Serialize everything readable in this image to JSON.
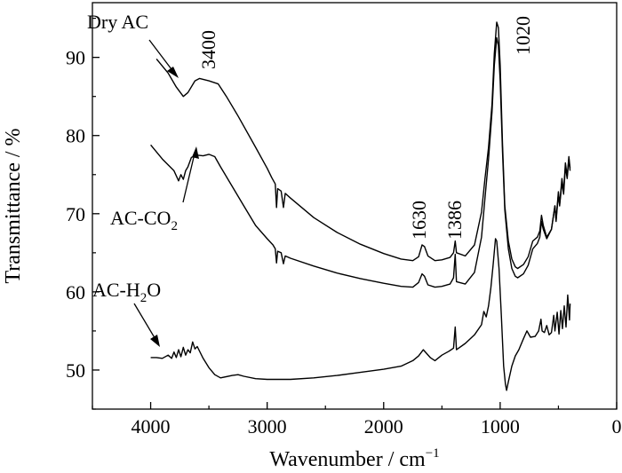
{
  "chart_data": {
    "type": "line",
    "title": "",
    "xlabel": "Wavenumber / cm",
    "xlabel_sup": "−1",
    "ylabel": "Transmittance / %",
    "xlim": [
      4500,
      0
    ],
    "ylim": [
      45,
      97
    ],
    "x_ticks": [
      4000,
      3000,
      2000,
      1000,
      0
    ],
    "y_ticks": [
      50,
      60,
      70,
      80,
      90
    ],
    "x_tick_labels": [
      "4000",
      "3000",
      "2000",
      "1000",
      "0"
    ],
    "y_tick_labels": [
      "50",
      "60",
      "70",
      "80",
      "90"
    ],
    "grid": false,
    "legend": "none",
    "series": [
      {
        "name": "Dry AC",
        "points": [
          [
            3950,
            89.8
          ],
          [
            3850,
            88.0
          ],
          [
            3780,
            86.2
          ],
          [
            3720,
            85.0
          ],
          [
            3680,
            85.5
          ],
          [
            3620,
            87.0
          ],
          [
            3580,
            87.3
          ],
          [
            3500,
            87.0
          ],
          [
            3420,
            86.6
          ],
          [
            3350,
            85.0
          ],
          [
            3250,
            82.5
          ],
          [
            3100,
            78.5
          ],
          [
            3000,
            75.8
          ],
          [
            2960,
            74.6
          ],
          [
            2930,
            73.8
          ],
          [
            2920,
            70.8
          ],
          [
            2910,
            73.2
          ],
          [
            2880,
            72.9
          ],
          [
            2860,
            70.8
          ],
          [
            2845,
            72.6
          ],
          [
            2800,
            72.0
          ],
          [
            2600,
            69.5
          ],
          [
            2400,
            67.6
          ],
          [
            2200,
            66.1
          ],
          [
            2000,
            64.9
          ],
          [
            1850,
            64.2
          ],
          [
            1750,
            64.0
          ],
          [
            1700,
            64.5
          ],
          [
            1670,
            66.0
          ],
          [
            1650,
            65.8
          ],
          [
            1620,
            64.6
          ],
          [
            1560,
            64.0
          ],
          [
            1500,
            64.1
          ],
          [
            1430,
            64.4
          ],
          [
            1400,
            65.0
          ],
          [
            1386,
            66.5
          ],
          [
            1375,
            65.0
          ],
          [
            1300,
            64.6
          ],
          [
            1220,
            66.0
          ],
          [
            1160,
            70.2
          ],
          [
            1130,
            74.5
          ],
          [
            1100,
            78.5
          ],
          [
            1070,
            84.0
          ],
          [
            1050,
            90.5
          ],
          [
            1030,
            94.5
          ],
          [
            1015,
            93.8
          ],
          [
            1000,
            89.0
          ],
          [
            980,
            79.0
          ],
          [
            960,
            71.0
          ],
          [
            930,
            66.5
          ],
          [
            900,
            64.2
          ],
          [
            870,
            63.2
          ],
          [
            850,
            63.0
          ],
          [
            800,
            63.5
          ],
          [
            760,
            64.5
          ],
          [
            720,
            66.5
          ],
          [
            680,
            67.0
          ],
          [
            660,
            67.8
          ],
          [
            645,
            69.8
          ],
          [
            630,
            68.5
          ],
          [
            600,
            67.0
          ],
          [
            560,
            68.0
          ],
          [
            530,
            71.0
          ],
          [
            520,
            69.0
          ],
          [
            500,
            72.5
          ],
          [
            490,
            71.0
          ],
          [
            470,
            74.0
          ],
          [
            455,
            72.5
          ],
          [
            440,
            76.0
          ],
          [
            425,
            74.5
          ],
          [
            410,
            77.0
          ],
          [
            400,
            75.5
          ]
        ]
      },
      {
        "name": "AC-CO",
        "name_sub": "2",
        "points": [
          [
            4000,
            78.8
          ],
          [
            3900,
            77.0
          ],
          [
            3800,
            75.5
          ],
          [
            3760,
            74.2
          ],
          [
            3740,
            75.0
          ],
          [
            3720,
            74.4
          ],
          [
            3700,
            75.5
          ],
          [
            3680,
            76.0
          ],
          [
            3650,
            77.2
          ],
          [
            3600,
            77.5
          ],
          [
            3550,
            77.4
          ],
          [
            3500,
            77.6
          ],
          [
            3450,
            77.3
          ],
          [
            3400,
            76.0
          ],
          [
            3300,
            73.5
          ],
          [
            3200,
            71.0
          ],
          [
            3100,
            68.5
          ],
          [
            3000,
            66.8
          ],
          [
            2950,
            66.0
          ],
          [
            2930,
            65.5
          ],
          [
            2920,
            63.7
          ],
          [
            2910,
            65.2
          ],
          [
            2880,
            65.0
          ],
          [
            2860,
            63.6
          ],
          [
            2845,
            64.6
          ],
          [
            2800,
            64.3
          ],
          [
            2600,
            63.3
          ],
          [
            2400,
            62.4
          ],
          [
            2200,
            61.7
          ],
          [
            2000,
            61.1
          ],
          [
            1850,
            60.7
          ],
          [
            1750,
            60.6
          ],
          [
            1700,
            61.2
          ],
          [
            1670,
            62.3
          ],
          [
            1650,
            62.0
          ],
          [
            1620,
            60.9
          ],
          [
            1560,
            60.6
          ],
          [
            1500,
            60.7
          ],
          [
            1430,
            61.0
          ],
          [
            1400,
            61.8
          ],
          [
            1386,
            64.8
          ],
          [
            1375,
            61.3
          ],
          [
            1300,
            61.0
          ],
          [
            1220,
            62.5
          ],
          [
            1160,
            67.0
          ],
          [
            1130,
            72.0
          ],
          [
            1100,
            77.0
          ],
          [
            1070,
            83.0
          ],
          [
            1050,
            89.0
          ],
          [
            1030,
            92.5
          ],
          [
            1015,
            91.5
          ],
          [
            1000,
            87.0
          ],
          [
            980,
            78.0
          ],
          [
            960,
            70.5
          ],
          [
            930,
            65.5
          ],
          [
            900,
            63.0
          ],
          [
            870,
            62.0
          ],
          [
            850,
            61.8
          ],
          [
            800,
            62.3
          ],
          [
            760,
            63.4
          ],
          [
            720,
            65.5
          ],
          [
            680,
            66.2
          ],
          [
            660,
            67.0
          ],
          [
            645,
            69.0
          ],
          [
            630,
            68.0
          ],
          [
            600,
            66.8
          ],
          [
            560,
            68.0
          ],
          [
            530,
            71.0
          ],
          [
            520,
            69.2
          ],
          [
            500,
            72.8
          ],
          [
            490,
            71.2
          ],
          [
            470,
            74.5
          ],
          [
            455,
            72.8
          ],
          [
            440,
            76.5
          ],
          [
            425,
            74.8
          ],
          [
            410,
            77.3
          ],
          [
            400,
            75.8
          ]
        ]
      },
      {
        "name": "AC-H",
        "name_sub": "2",
        "name_suffix": "O",
        "points": [
          [
            4000,
            51.6
          ],
          [
            3950,
            51.6
          ],
          [
            3900,
            51.5
          ],
          [
            3850,
            51.9
          ],
          [
            3820,
            51.5
          ],
          [
            3800,
            52.3
          ],
          [
            3780,
            51.6
          ],
          [
            3760,
            52.6
          ],
          [
            3740,
            51.7
          ],
          [
            3720,
            52.9
          ],
          [
            3700,
            51.9
          ],
          [
            3680,
            52.6
          ],
          [
            3660,
            52.2
          ],
          [
            3640,
            53.6
          ],
          [
            3620,
            52.7
          ],
          [
            3600,
            53.0
          ],
          [
            3550,
            51.5
          ],
          [
            3500,
            50.3
          ],
          [
            3450,
            49.4
          ],
          [
            3400,
            49.0
          ],
          [
            3300,
            49.3
          ],
          [
            3250,
            49.4
          ],
          [
            3200,
            49.2
          ],
          [
            3100,
            48.9
          ],
          [
            3000,
            48.8
          ],
          [
            2800,
            48.8
          ],
          [
            2600,
            49.0
          ],
          [
            2400,
            49.3
          ],
          [
            2200,
            49.7
          ],
          [
            2000,
            50.1
          ],
          [
            1850,
            50.5
          ],
          [
            1750,
            51.2
          ],
          [
            1700,
            51.8
          ],
          [
            1660,
            52.6
          ],
          [
            1630,
            52.1
          ],
          [
            1600,
            51.6
          ],
          [
            1560,
            51.2
          ],
          [
            1500,
            51.9
          ],
          [
            1440,
            52.4
          ],
          [
            1400,
            52.8
          ],
          [
            1386,
            55.5
          ],
          [
            1375,
            52.6
          ],
          [
            1300,
            53.4
          ],
          [
            1220,
            54.5
          ],
          [
            1160,
            55.8
          ],
          [
            1140,
            57.5
          ],
          [
            1120,
            56.8
          ],
          [
            1100,
            58.2
          ],
          [
            1080,
            60.5
          ],
          [
            1060,
            63.5
          ],
          [
            1040,
            66.8
          ],
          [
            1030,
            66.5
          ],
          [
            1010,
            63.0
          ],
          [
            990,
            57.0
          ],
          [
            970,
            50.5
          ],
          [
            955,
            48.2
          ],
          [
            945,
            47.4
          ],
          [
            930,
            48.5
          ],
          [
            900,
            50.5
          ],
          [
            870,
            51.8
          ],
          [
            840,
            52.6
          ],
          [
            800,
            54.0
          ],
          [
            770,
            55.0
          ],
          [
            740,
            54.2
          ],
          [
            700,
            54.3
          ],
          [
            670,
            55.0
          ],
          [
            650,
            56.5
          ],
          [
            640,
            55.0
          ],
          [
            620,
            54.8
          ],
          [
            600,
            55.7
          ],
          [
            580,
            54.5
          ],
          [
            560,
            54.8
          ],
          [
            540,
            57.0
          ],
          [
            530,
            55.0
          ],
          [
            510,
            57.4
          ],
          [
            495,
            54.6
          ],
          [
            480,
            57.6
          ],
          [
            465,
            55.3
          ],
          [
            450,
            58.2
          ],
          [
            435,
            55.5
          ],
          [
            420,
            59.6
          ],
          [
            405,
            56.4
          ],
          [
            400,
            58.5
          ]
        ]
      }
    ],
    "annotations": [
      {
        "name": "peak-label-3400",
        "text": "3400",
        "rotate": true
      },
      {
        "name": "peak-label-1630",
        "text": "1630",
        "rotate": true
      },
      {
        "name": "peak-label-1386",
        "text": "1386",
        "rotate": true
      },
      {
        "name": "peak-label-1020",
        "text": "1020",
        "rotate": true
      }
    ]
  }
}
